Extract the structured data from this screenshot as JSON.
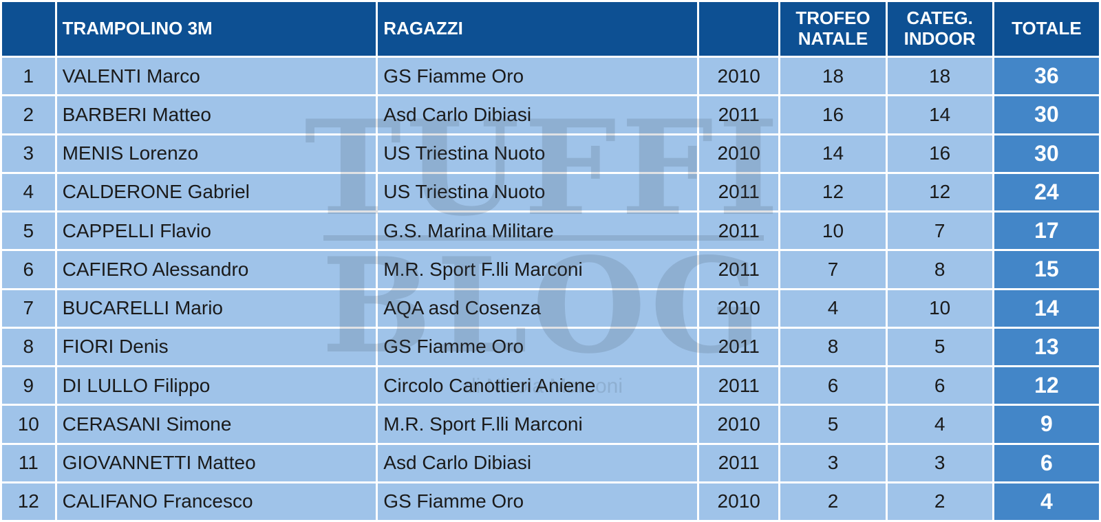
{
  "header": {
    "col_rank": "",
    "col_name": "TRAMPOLINO 3M",
    "col_club": "RAGAZZI",
    "col_year": "",
    "col_trofeo": "TROFEO NATALE",
    "col_categ": "CATEG. INDOOR",
    "col_total": "TOTALE"
  },
  "rows": [
    {
      "rank": "1",
      "name": "VALENTI Marco",
      "club": "GS Fiamme Oro",
      "year": "2010",
      "trofeo": "18",
      "categ": "18",
      "total": "36"
    },
    {
      "rank": "2",
      "name": "BARBERI Matteo",
      "club": "Asd Carlo Dibiasi",
      "year": "2011",
      "trofeo": "16",
      "categ": "14",
      "total": "30"
    },
    {
      "rank": "3",
      "name": "MENIS Lorenzo",
      "club": "US Triestina Nuoto",
      "year": "2010",
      "trofeo": "14",
      "categ": "16",
      "total": "30"
    },
    {
      "rank": "4",
      "name": "CALDERONE Gabriel",
      "club": "US Triestina Nuoto",
      "year": "2011",
      "trofeo": "12",
      "categ": "12",
      "total": "24"
    },
    {
      "rank": "5",
      "name": "CAPPELLI Flavio",
      "club": "G.S. Marina Militare",
      "year": "2011",
      "trofeo": "10",
      "categ": "7",
      "total": "17"
    },
    {
      "rank": "6",
      "name": "CAFIERO Alessandro",
      "club": "M.R. Sport F.lli Marconi",
      "year": "2011",
      "trofeo": "7",
      "categ": "8",
      "total": "15"
    },
    {
      "rank": "7",
      "name": "BUCARELLI Mario",
      "club": "AQA asd Cosenza",
      "year": "2010",
      "trofeo": "4",
      "categ": "10",
      "total": "14"
    },
    {
      "rank": "8",
      "name": "FIORI Denis",
      "club": "GS Fiamme Oro",
      "year": "2011",
      "trofeo": "8",
      "categ": "5",
      "total": "13"
    },
    {
      "rank": "9",
      "name": "DI LULLO Filippo",
      "club": "Circolo Canottieri Aniene",
      "year": "2011",
      "trofeo": "6",
      "categ": "6",
      "total": "12"
    },
    {
      "rank": "10",
      "name": "CERASANI Simone",
      "club": "M.R. Sport F.lli Marconi",
      "year": "2010",
      "trofeo": "5",
      "categ": "4",
      "total": "9"
    },
    {
      "rank": "11",
      "name": "GIOVANNETTI Matteo",
      "club": "Asd Carlo Dibiasi",
      "year": "2011",
      "trofeo": "3",
      "categ": "3",
      "total": "6"
    },
    {
      "rank": "12",
      "name": "CALIFANO Francesco",
      "club": "GS Fiamme Oro",
      "year": "2010",
      "trofeo": "2",
      "categ": "2",
      "total": "4"
    }
  ],
  "watermark": {
    "line1": "TUFFI",
    "line2": "BLOG",
    "byline": "di Nicola Marconi"
  },
  "colors": {
    "header_bg": "#0d5093",
    "row_bg": "#9fc3e9",
    "total_bg": "#4386c8"
  }
}
